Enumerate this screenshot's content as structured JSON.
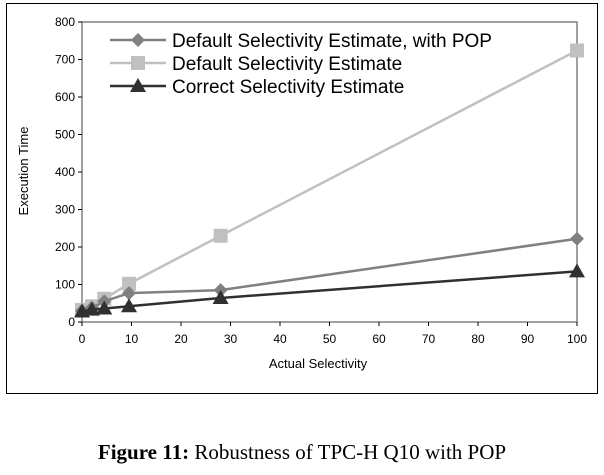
{
  "chart_data": {
    "type": "line",
    "xlabel": "Actual Selectivity",
    "ylabel": "Execution Time",
    "xlim": [
      0,
      100
    ],
    "ylim": [
      0,
      800
    ],
    "xticks": [
      0,
      10,
      20,
      30,
      40,
      50,
      60,
      70,
      80,
      90,
      100
    ],
    "yticks": [
      0,
      100,
      200,
      300,
      400,
      500,
      600,
      700,
      800
    ],
    "grid": false,
    "legend_position": "top",
    "series": [
      {
        "name": "Default Selectivity Estimate, with POP",
        "marker": "diamond",
        "color": "#808080",
        "x": [
          0,
          2,
          4.5,
          9.5,
          28,
          100
        ],
        "y": [
          30,
          38,
          55,
          77,
          85,
          222
        ]
      },
      {
        "name": "Default Selectivity Estimate",
        "marker": "square",
        "color": "#c0c0c0",
        "x": [
          0,
          2,
          4.5,
          9.5,
          28,
          100
        ],
        "y": [
          32,
          42,
          62,
          102,
          230,
          724
        ]
      },
      {
        "name": "Correct Selectivity Estimate",
        "marker": "triangle",
        "color": "#303030",
        "x": [
          0,
          2,
          4.5,
          9.5,
          28,
          100
        ],
        "y": [
          28,
          33,
          36,
          42,
          64,
          135
        ]
      }
    ]
  },
  "caption": {
    "label": "Figure 11:",
    "text": " Robustness of TPC-H Q10 with POP"
  }
}
